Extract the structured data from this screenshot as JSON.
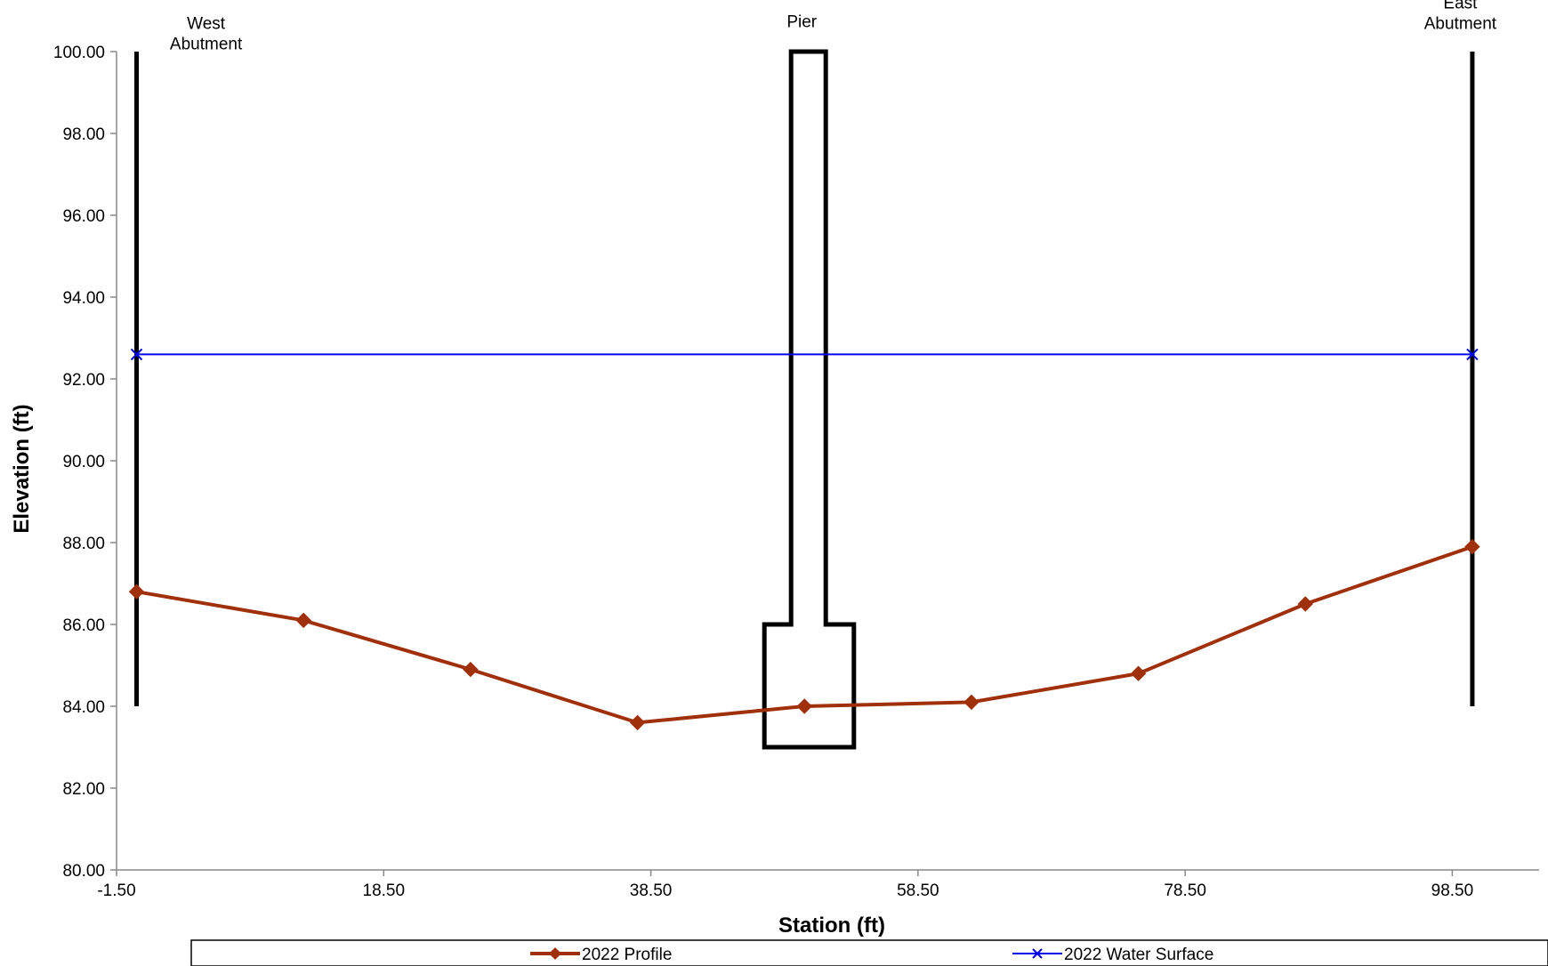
{
  "chart_data": {
    "type": "line",
    "xlabel": "Station (ft)",
    "ylabel": "Elevation (ft)",
    "xlim": [
      -1.5,
      105
    ],
    "ylim": [
      80,
      100
    ],
    "x_ticks": [
      -1.5,
      18.5,
      38.5,
      58.5,
      78.5,
      98.5
    ],
    "y_ticks": [
      80,
      82,
      84,
      86,
      88,
      90,
      92,
      94,
      96,
      98,
      100
    ],
    "x_tick_labels": [
      "-1.50",
      "18.50",
      "38.50",
      "58.50",
      "78.50",
      "98.50"
    ],
    "y_tick_labels": [
      "80.00",
      "82.00",
      "84.00",
      "86.00",
      "88.00",
      "90.00",
      "92.00",
      "94.00",
      "96.00",
      "98.00",
      "100.00"
    ],
    "grid": false,
    "legend_position": "bottom",
    "series": [
      {
        "name": "2022 Profile",
        "color": "#a0300a",
        "marker": "diamond",
        "x": [
          0,
          12.5,
          25,
          37.5,
          50,
          62.5,
          75,
          87.5,
          100
        ],
        "y": [
          86.8,
          86.1,
          84.9,
          83.6,
          84.0,
          84.1,
          84.8,
          86.5,
          87.9
        ]
      },
      {
        "name": "2022 Water Surface",
        "color": "#0000ee",
        "marker": "x",
        "x": [
          0,
          100
        ],
        "y": [
          92.6,
          92.6
        ]
      }
    ],
    "structures": {
      "west_abutment": {
        "x": 0,
        "y": [
          84,
          100
        ]
      },
      "east_abutment": {
        "x": 100,
        "y": [
          84,
          100
        ]
      },
      "pier": {
        "outline": [
          [
            49.0,
            100
          ],
          [
            49.0,
            86
          ],
          [
            47.0,
            86
          ],
          [
            47.0,
            83
          ],
          [
            53.7,
            83
          ],
          [
            53.7,
            86
          ],
          [
            51.6,
            86
          ],
          [
            51.6,
            100
          ]
        ]
      }
    },
    "annotations": [
      {
        "lines": [
          "West",
          "Abutment"
        ],
        "x": 5.2,
        "y": 100.55
      },
      {
        "lines": [
          "Pier"
        ],
        "x": 49.8,
        "y": 100.6
      },
      {
        "lines": [
          "East",
          "Abutment"
        ],
        "x": 99.1,
        "y": 101.05
      }
    ]
  }
}
